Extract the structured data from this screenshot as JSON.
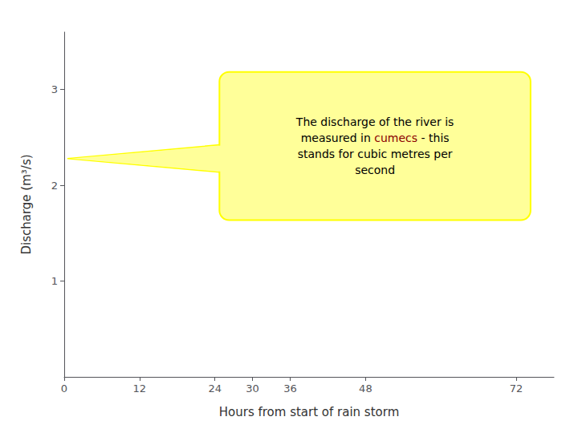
{
  "chart_data": {
    "type": "line",
    "xlabel": "Hours from start of rain storm",
    "ylabel": "Discharge (m³/s)",
    "xlim": [
      0,
      78
    ],
    "xticks": [
      0,
      12,
      24,
      36,
      48,
      30,
      72
    ],
    "ylim": [
      0,
      3.6
    ],
    "yticks": [
      1,
      2,
      3
    ],
    "grid": false,
    "series": [],
    "annotations": [
      {
        "text": "The discharge of the river is\nmeasured in cumecs - this\nstands for cubic metres per\nsecond",
        "highlight": "cumecs",
        "highlight_color": "#8B0000",
        "color": "#ffff99",
        "border_color": "#ffff00",
        "x0": 26,
        "x1": 73,
        "y0": 1.72,
        "y1": 3.1,
        "pointer_x": 0.5,
        "pointer_y": 2.28
      }
    ]
  }
}
